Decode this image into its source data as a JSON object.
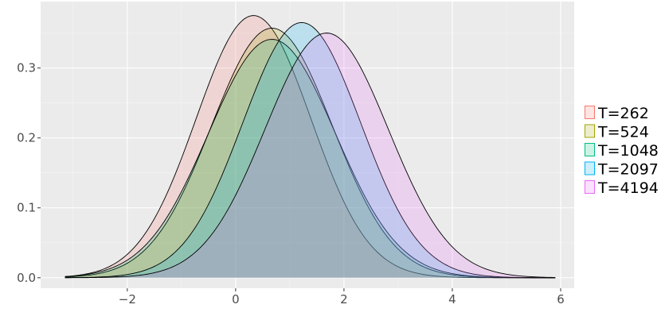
{
  "chart_data": {
    "type": "area",
    "title": "",
    "xlabel": "",
    "ylabel": "",
    "xlim": [
      -3.6,
      6.25
    ],
    "ylim": [
      -0.015,
      0.395
    ],
    "x_ticks": [
      -2,
      0,
      2,
      4,
      6
    ],
    "y_ticks": [
      0.0,
      0.1,
      0.2,
      0.3
    ],
    "x_tick_labels": [
      "−2",
      "0",
      "2",
      "4",
      "6"
    ],
    "y_tick_labels": [
      "0.0",
      "0.1",
      "0.2",
      "0.3"
    ],
    "x_range": [
      -3.15,
      5.9
    ],
    "grid": true,
    "legend_position": "right",
    "series": [
      {
        "name": "T=262",
        "peak_x": 0.33,
        "peak_y": 0.375,
        "sd": 1.06,
        "color": "#F8766D"
      },
      {
        "name": "T=524",
        "peak_x": 0.67,
        "peak_y": 0.357,
        "sd": 1.12,
        "color": "#A3A500"
      },
      {
        "name": "T=1048",
        "peak_x": 0.67,
        "peak_y": 0.341,
        "sd": 1.17,
        "color": "#00BF7D"
      },
      {
        "name": "T=2097",
        "peak_x": 1.22,
        "peak_y": 0.365,
        "sd": 1.09,
        "color": "#00B0F6"
      },
      {
        "name": "T=4194",
        "peak_x": 1.68,
        "peak_y": 0.35,
        "sd": 1.14,
        "color": "#E76BF3"
      }
    ],
    "fill_opacity": 0.2
  }
}
